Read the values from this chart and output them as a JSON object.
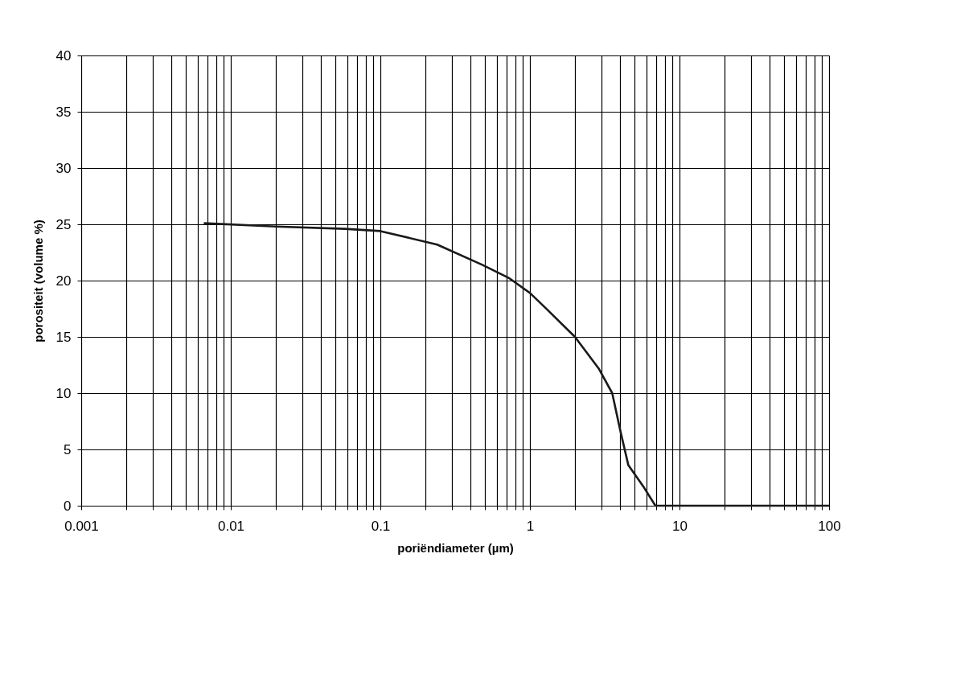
{
  "chart_data": {
    "type": "line",
    "xlabel": "poriëndiameter (µm)",
    "ylabel": "porositeit (volume %)",
    "log": "x",
    "x": [
      0.0066,
      0.02,
      0.058,
      0.1,
      0.24,
      0.48,
      0.73,
      1.0,
      1.31,
      2.0,
      2.88,
      3.55,
      4.0,
      4.55,
      5.8,
      6.9,
      100
    ],
    "series": [
      {
        "color": "#1a1a1a",
        "values": [
          25.1,
          24.8,
          24.6,
          24.4,
          23.2,
          21.4,
          20.2,
          18.9,
          17.4,
          15.0,
          12.2,
          10.0,
          6.8,
          3.6,
          1.6,
          0,
          0
        ]
      }
    ],
    "xlim": [
      0.001,
      100
    ],
    "ylim": [
      0,
      40
    ],
    "xticks": [
      {
        "value": 0.001,
        "label": "0.001"
      },
      {
        "value": 0.002,
        "label": null
      },
      {
        "value": 0.003,
        "label": null
      },
      {
        "value": 0.004,
        "label": null
      },
      {
        "value": 0.005,
        "label": null
      },
      {
        "value": 0.006,
        "label": null
      },
      {
        "value": 0.007,
        "label": null
      },
      {
        "value": 0.008,
        "label": null
      },
      {
        "value": 0.009,
        "label": null
      },
      {
        "value": 0.01,
        "label": "0.01"
      },
      {
        "value": 0.02,
        "label": null
      },
      {
        "value": 0.03,
        "label": null
      },
      {
        "value": 0.04,
        "label": null
      },
      {
        "value": 0.05,
        "label": null
      },
      {
        "value": 0.06,
        "label": null
      },
      {
        "value": 0.07,
        "label": null
      },
      {
        "value": 0.08,
        "label": null
      },
      {
        "value": 0.09,
        "label": null
      },
      {
        "value": 0.1,
        "label": "0.1"
      },
      {
        "value": 0.2,
        "label": null
      },
      {
        "value": 0.3,
        "label": null
      },
      {
        "value": 0.4,
        "label": null
      },
      {
        "value": 0.5,
        "label": null
      },
      {
        "value": 0.6,
        "label": null
      },
      {
        "value": 0.7,
        "label": null
      },
      {
        "value": 0.8,
        "label": null
      },
      {
        "value": 0.9,
        "label": null
      },
      {
        "value": 1,
        "label": "1"
      },
      {
        "value": 2,
        "label": null
      },
      {
        "value": 3,
        "label": null
      },
      {
        "value": 4,
        "label": null
      },
      {
        "value": 5,
        "label": null
      },
      {
        "value": 6,
        "label": null
      },
      {
        "value": 7,
        "label": null
      },
      {
        "value": 8,
        "label": null
      },
      {
        "value": 9,
        "label": null
      },
      {
        "value": 10,
        "label": "10"
      },
      {
        "value": 20,
        "label": null
      },
      {
        "value": 30,
        "label": null
      },
      {
        "value": 40,
        "label": null
      },
      {
        "value": 50,
        "label": null
      },
      {
        "value": 60,
        "label": null
      },
      {
        "value": 70,
        "label": null
      },
      {
        "value": 80,
        "label": null
      },
      {
        "value": 90,
        "label": null
      },
      {
        "value": 100,
        "label": "100"
      }
    ],
    "yticks": [
      0,
      5,
      10,
      15,
      20,
      25,
      30,
      35,
      40
    ],
    "grid": true,
    "marker": "none",
    "line_style": "solid"
  }
}
